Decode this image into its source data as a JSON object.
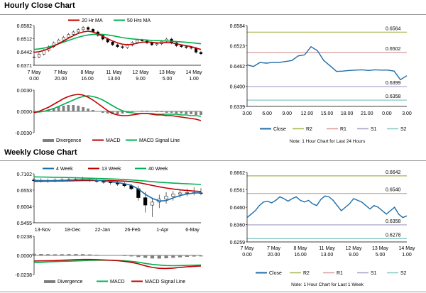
{
  "sections": {
    "hourly_title": "Hourly Close Chart",
    "weekly_title": "Weekly Close Chart"
  },
  "colors": {
    "ma_fast": "#c00000",
    "ma_slow": "#00b050",
    "close_line": "#1f6ca8",
    "r2": "#a8b24a",
    "r1": "#d69a9a",
    "s1": "#a79bc7",
    "s2": "#84c7c4",
    "hist": "#808080"
  },
  "chart_data": [
    {
      "id": "hourly_price",
      "type": "candlestick",
      "legend": [
        "20 Hr MA",
        "50 Hrs MA"
      ],
      "yticks": [
        "0.6582",
        "0.6512",
        "0.6442",
        "0.6371"
      ],
      "ylim": [
        0.6371,
        0.6582
      ],
      "xticks": [
        {
          "d": "7 May",
          "t": "0.00"
        },
        {
          "d": "7 May",
          "t": "20.00"
        },
        {
          "d": "8 May",
          "t": "16.00"
        },
        {
          "d": "11 May",
          "t": "13.00"
        },
        {
          "d": "12 May",
          "t": "9.00"
        },
        {
          "d": "13 May",
          "t": "5.00"
        },
        {
          "d": "14 May",
          "t": "1.00"
        }
      ],
      "close": [
        0.6415,
        0.643,
        0.645,
        0.647,
        0.649,
        0.6505,
        0.652,
        0.6535,
        0.6548,
        0.656,
        0.6572,
        0.6562,
        0.6548,
        0.653,
        0.651,
        0.6495,
        0.648,
        0.647,
        0.6465,
        0.6478,
        0.6492,
        0.6505,
        0.65,
        0.649,
        0.648,
        0.6485,
        0.6498,
        0.651,
        0.649,
        0.6475,
        0.647,
        0.6465,
        0.6462,
        0.644,
        0.6432
      ],
      "ma20": [
        0.644,
        0.6443,
        0.645,
        0.646,
        0.6472,
        0.6486,
        0.65,
        0.6515,
        0.6528,
        0.654,
        0.6548,
        0.6552,
        0.6548,
        0.6538,
        0.6525,
        0.6512,
        0.65,
        0.649,
        0.6483,
        0.648,
        0.6482,
        0.6488,
        0.6493,
        0.6495,
        0.6493,
        0.649,
        0.649,
        0.6492,
        0.649,
        0.6485,
        0.648,
        0.6475,
        0.647,
        0.6462,
        0.6455
      ],
      "ma50": [
        0.6455,
        0.6458,
        0.6462,
        0.6468,
        0.6476,
        0.6485,
        0.6494,
        0.6503,
        0.6512,
        0.652,
        0.6527,
        0.6532,
        0.6535,
        0.6536,
        0.6535,
        0.6532,
        0.6528,
        0.6523,
        0.6518,
        0.6514,
        0.6511,
        0.6509,
        0.6507,
        0.6505,
        0.6503,
        0.6502,
        0.6501,
        0.65,
        0.6499,
        0.6497,
        0.6495,
        0.6493,
        0.6491,
        0.6488,
        0.6485
      ]
    },
    {
      "id": "hourly_macd",
      "type": "bar+line",
      "yticks": [
        "0.0030",
        "0.0000",
        "-0.0030"
      ],
      "ylim": [
        -0.003,
        0.003
      ],
      "legend": [
        "Divergence",
        "MACD",
        "MACD Signal Line"
      ],
      "divergence": [
        -0.0002,
        -0.0001,
        0.0001,
        0.0003,
        0.0005,
        0.0007,
        0.0008,
        0.0009,
        0.0009,
        0.0008,
        0.0006,
        0.0004,
        0.0002,
        0.0,
        -0.0002,
        -0.0003,
        -0.0004,
        -0.0004,
        -0.0003,
        -0.0002,
        -0.0001,
        0.0,
        0.0001,
        0.0001,
        0.0,
        -0.0001,
        -0.0001,
        -0.0002,
        -0.0002,
        -0.0003,
        -0.0003,
        -0.0004,
        -0.0004,
        -0.0005,
        -0.0005
      ],
      "macd": [
        -0.0002,
        0.0,
        0.0003,
        0.0006,
        0.001,
        0.0014,
        0.0018,
        0.0021,
        0.0023,
        0.0024,
        0.0023,
        0.002,
        0.0016,
        0.0011,
        0.0006,
        0.0001,
        -0.0003,
        -0.0005,
        -0.0006,
        -0.0006,
        -0.0005,
        -0.0004,
        -0.0003,
        -0.0003,
        -0.0004,
        -0.0005,
        -0.0005,
        -0.0006,
        -0.0006,
        -0.0007,
        -0.0008,
        -0.0009,
        -0.001,
        -0.0011,
        -0.0013
      ],
      "signal": [
        -0.0001,
        -0.0001,
        0.0,
        0.0002,
        0.0004,
        0.0007,
        0.001,
        0.0013,
        0.0016,
        0.0019,
        0.0021,
        0.0022,
        0.0021,
        0.0019,
        0.0016,
        0.0012,
        0.0008,
        0.0004,
        0.0001,
        -0.0001,
        -0.0002,
        -0.0003,
        -0.0003,
        -0.0003,
        -0.0003,
        -0.0004,
        -0.0004,
        -0.0004,
        -0.0004,
        -0.0004,
        -0.0005,
        -0.0005,
        -0.0006,
        -0.0006,
        -0.0007
      ]
    },
    {
      "id": "hourly_pivot",
      "type": "line",
      "yticks": [
        "0.6584",
        "0.6523",
        "0.6462",
        "0.6400",
        "0.6339"
      ],
      "ylim": [
        0.6339,
        0.6584
      ],
      "xticks": [
        "3.00",
        "6.00",
        "9.00",
        "12.00",
        "15.00",
        "18.00",
        "21.00",
        "0.00",
        "3.00"
      ],
      "levels": {
        "r2": 0.6564,
        "r1": 0.6502,
        "s1": 0.6399,
        "s2": 0.6358
      },
      "level_labels": {
        "r2": "0.6564",
        "r1": "0.6502",
        "s1": "0.6399",
        "s2": "0.6358"
      },
      "close": [
        0.6465,
        0.646,
        0.6472,
        0.647,
        0.6472,
        0.6472,
        0.6475,
        0.6478,
        0.6492,
        0.6495,
        0.652,
        0.6508,
        0.6478,
        0.6462,
        0.6445,
        0.6446,
        0.6448,
        0.6449,
        0.645,
        0.6448,
        0.645,
        0.6449,
        0.6449,
        0.6446,
        0.642,
        0.6432
      ],
      "legend": [
        "Close",
        "R2",
        "R1",
        "S1",
        "S2"
      ],
      "note": "Note: 1 Hour Chart for Last 24 Hours"
    },
    {
      "id": "weekly_price",
      "type": "candlestick",
      "legend": [
        "4 Week",
        "13 Week",
        "40 Week"
      ],
      "yticks": [
        "0.7102",
        "0.6553",
        "0.6004",
        "0.5455"
      ],
      "ylim": [
        0.5455,
        0.7102
      ],
      "xticks": [
        "13-Nov",
        "18-Dec",
        "22-Jan",
        "26-Feb",
        "1-Apr",
        "6-May"
      ],
      "open": [
        0.69,
        0.687,
        0.686,
        0.688,
        0.689,
        0.69,
        0.691,
        0.692,
        0.69,
        0.688,
        0.685,
        0.682,
        0.68,
        0.676,
        0.67,
        0.66,
        0.63,
        0.605,
        0.615,
        0.625,
        0.635,
        0.642,
        0.646,
        0.647,
        0.646
      ],
      "high": [
        0.696,
        0.695,
        0.694,
        0.695,
        0.696,
        0.697,
        0.699,
        0.7,
        0.696,
        0.693,
        0.69,
        0.688,
        0.685,
        0.682,
        0.676,
        0.67,
        0.65,
        0.63,
        0.64,
        0.648,
        0.652,
        0.656,
        0.66,
        0.665,
        0.662
      ],
      "low": [
        0.682,
        0.681,
        0.68,
        0.682,
        0.684,
        0.685,
        0.686,
        0.686,
        0.683,
        0.68,
        0.677,
        0.674,
        0.67,
        0.665,
        0.655,
        0.62,
        0.58,
        0.565,
        0.595,
        0.61,
        0.62,
        0.63,
        0.635,
        0.638,
        0.638
      ],
      "close": [
        0.687,
        0.686,
        0.688,
        0.689,
        0.69,
        0.691,
        0.692,
        0.69,
        0.688,
        0.685,
        0.682,
        0.68,
        0.676,
        0.67,
        0.66,
        0.63,
        0.605,
        0.615,
        0.625,
        0.635,
        0.642,
        0.646,
        0.647,
        0.646,
        0.645
      ],
      "ma4": [
        0.688,
        0.6875,
        0.687,
        0.6875,
        0.688,
        0.689,
        0.69,
        0.6905,
        0.6903,
        0.6888,
        0.6863,
        0.6838,
        0.6808,
        0.677,
        0.6715,
        0.659,
        0.6413,
        0.6275,
        0.6188,
        0.62,
        0.6293,
        0.637,
        0.6425,
        0.6455,
        0.6463
      ],
      "ma13": [
        0.685,
        0.6852,
        0.6855,
        0.6858,
        0.6862,
        0.6866,
        0.6871,
        0.6875,
        0.6878,
        0.688,
        0.6878,
        0.6873,
        0.6866,
        0.6855,
        0.6838,
        0.6805,
        0.676,
        0.671,
        0.6665,
        0.6625,
        0.6592,
        0.6563,
        0.654,
        0.6522,
        0.6508
      ],
      "ma40": [
        0.7,
        0.6995,
        0.699,
        0.6985,
        0.698,
        0.6975,
        0.6968,
        0.6962,
        0.6955,
        0.6948,
        0.694,
        0.693,
        0.692,
        0.6908,
        0.6895,
        0.6878,
        0.6858,
        0.6838,
        0.682,
        0.6805,
        0.679,
        0.6777,
        0.6765,
        0.6755,
        0.6745
      ]
    },
    {
      "id": "weekly_macd",
      "type": "bar+line",
      "yticks": [
        "0.0238",
        "0.0000",
        "-0.0238"
      ],
      "ylim": [
        -0.0238,
        0.0238
      ],
      "legend": [
        "Divergence",
        "MACD",
        "MACD Signal Line"
      ],
      "divergence": [
        0.002,
        0.0018,
        0.0015,
        0.0014,
        0.0015,
        0.0016,
        0.0017,
        0.0016,
        0.0012,
        0.0008,
        0.0004,
        0.0,
        -0.0004,
        -0.0008,
        -0.0012,
        -0.002,
        -0.003,
        -0.0038,
        -0.004,
        -0.0036,
        -0.003,
        -0.0024,
        -0.0018,
        -0.0014,
        -0.0012
      ],
      "macd": [
        -0.007,
        -0.0068,
        -0.0066,
        -0.0064,
        -0.006,
        -0.0056,
        -0.0052,
        -0.005,
        -0.005,
        -0.0052,
        -0.0056,
        -0.006,
        -0.0066,
        -0.0074,
        -0.0086,
        -0.0105,
        -0.013,
        -0.015,
        -0.016,
        -0.0162,
        -0.0158,
        -0.015,
        -0.0142,
        -0.0136,
        -0.0132
      ],
      "signal": [
        -0.009,
        -0.0086,
        -0.0081,
        -0.0078,
        -0.0075,
        -0.0072,
        -0.0069,
        -0.0066,
        -0.0062,
        -0.006,
        -0.006,
        -0.006,
        -0.0062,
        -0.0066,
        -0.0074,
        -0.0085,
        -0.01,
        -0.0112,
        -0.012,
        -0.0126,
        -0.0128,
        -0.0126,
        -0.0124,
        -0.0122,
        -0.012
      ]
    },
    {
      "id": "weekly_pivot",
      "type": "line",
      "yticks": [
        "0.6662",
        "0.6561",
        "0.6460",
        "0.6360",
        "0.6259"
      ],
      "ylim": [
        0.6259,
        0.6662
      ],
      "xticks": [
        {
          "d": "7 May",
          "t": "0.00"
        },
        {
          "d": "7 May",
          "t": "20.00"
        },
        {
          "d": "8 May",
          "t": "16.00"
        },
        {
          "d": "11 May",
          "t": "13.00"
        },
        {
          "d": "12 May",
          "t": "9.00"
        },
        {
          "d": "13 May",
          "t": "5.00"
        },
        {
          "d": "14 May",
          "t": "1.00"
        }
      ],
      "levels": {
        "r2": 0.6642,
        "r1": 0.654,
        "s1": 0.6358,
        "s2": 0.6278
      },
      "level_labels": {
        "r2": "0.6642",
        "r1": "0.6540",
        "s1": "0.6358",
        "s2": "0.6278"
      },
      "close": [
        0.64,
        0.642,
        0.644,
        0.647,
        0.649,
        0.6495,
        0.6485,
        0.65,
        0.652,
        0.651,
        0.6495,
        0.651,
        0.652,
        0.65,
        0.649,
        0.65,
        0.648,
        0.647,
        0.6505,
        0.6525,
        0.652,
        0.65,
        0.647,
        0.644,
        0.646,
        0.648,
        0.651,
        0.65,
        0.649,
        0.647,
        0.645,
        0.647,
        0.646,
        0.644,
        0.642,
        0.644,
        0.646,
        0.642,
        0.64,
        0.641
      ],
      "legend": [
        "Close",
        "R2",
        "R1",
        "S1",
        "S2"
      ],
      "note": "Note: 1 Hour Chart for Last 1 Week"
    }
  ]
}
